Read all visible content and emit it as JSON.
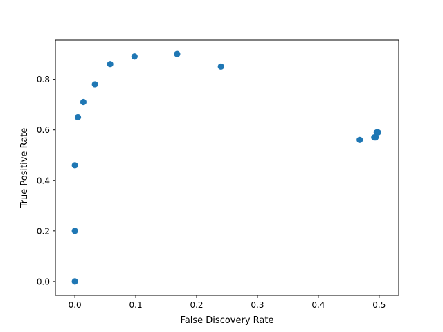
{
  "chart_data": {
    "type": "scatter",
    "title": "",
    "xlabel": "False Discovery Rate",
    "ylabel": "True Positive Rate",
    "xlim": [
      -0.032,
      0.532
    ],
    "ylim": [
      -0.055,
      0.955
    ],
    "grid": false,
    "marker_color": "#1f77b4",
    "xticks": [
      0.0,
      0.1,
      0.2,
      0.3,
      0.4,
      0.5
    ],
    "xtick_labels": [
      "0.0",
      "0.1",
      "0.2",
      "0.3",
      "0.4",
      "0.5"
    ],
    "yticks": [
      0.0,
      0.2,
      0.4,
      0.6,
      0.8
    ],
    "ytick_labels": [
      "0.0",
      "0.2",
      "0.4",
      "0.6",
      "0.8"
    ],
    "points": [
      {
        "x": 0.0,
        "y": 0.0
      },
      {
        "x": 0.0,
        "y": 0.2
      },
      {
        "x": 0.0,
        "y": 0.46
      },
      {
        "x": 0.005,
        "y": 0.65
      },
      {
        "x": 0.014,
        "y": 0.71
      },
      {
        "x": 0.033,
        "y": 0.78
      },
      {
        "x": 0.058,
        "y": 0.86
      },
      {
        "x": 0.098,
        "y": 0.89
      },
      {
        "x": 0.168,
        "y": 0.9
      },
      {
        "x": 0.24,
        "y": 0.85
      },
      {
        "x": 0.468,
        "y": 0.56
      },
      {
        "x": 0.492,
        "y": 0.57
      },
      {
        "x": 0.494,
        "y": 0.57
      },
      {
        "x": 0.496,
        "y": 0.59
      },
      {
        "x": 0.498,
        "y": 0.59
      }
    ]
  }
}
